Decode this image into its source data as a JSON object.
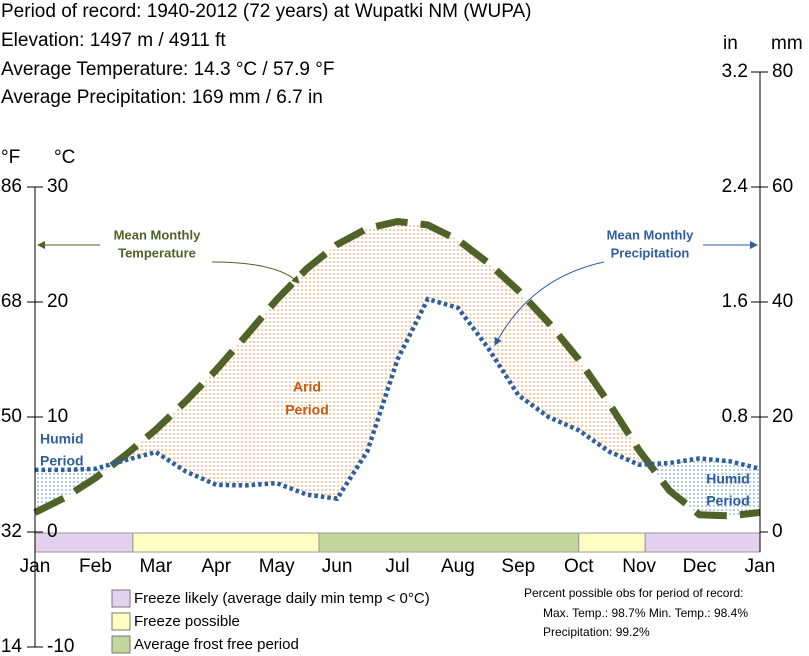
{
  "chart_data": {
    "type": "climate",
    "header": [
      "Period of record: 1940-2012  (72 years) at Wupatki NM (WUPA)",
      "Elevation: 1497 m / 4911 ft",
      "Average Temperature: 14.3 °C / 57.9 °F",
      "Average Precipitation: 169 mm / 6.7 in"
    ],
    "x": [
      0,
      0.5,
      1,
      1.5,
      2,
      2.5,
      3,
      3.5,
      4,
      4.5,
      5,
      5.5,
      6,
      6.5,
      7,
      7.5,
      8,
      8.5,
      9,
      9.5,
      10,
      10.5,
      11,
      11.5,
      12
    ],
    "xlim": [
      0,
      12
    ],
    "xticks": [
      {
        "value": 0,
        "label": "Jan"
      },
      {
        "value": 1,
        "label": "Feb"
      },
      {
        "value": 2,
        "label": "Mar"
      },
      {
        "value": 3,
        "label": "Apr"
      },
      {
        "value": 4,
        "label": "May"
      },
      {
        "value": 5,
        "label": "Jun"
      },
      {
        "value": 6,
        "label": "Jul"
      },
      {
        "value": 7,
        "label": "Aug"
      },
      {
        "value": 8,
        "label": "Sep"
      },
      {
        "value": 9,
        "label": "Oct"
      },
      {
        "value": 10,
        "label": "Nov"
      },
      {
        "value": 11,
        "label": "Dec"
      },
      {
        "value": 12,
        "label": "Jan"
      }
    ],
    "series": [
      {
        "name": "Mean Monthly Temperature",
        "color": "#4f6228",
        "values": [
          1.7,
          3.0,
          4.7,
          6.7,
          8.9,
          11.4,
          14.1,
          17.1,
          20.2,
          22.9,
          25,
          26.4,
          27,
          26.7,
          25.4,
          23.4,
          21,
          18.2,
          15,
          11.2,
          7.1,
          3.6,
          1.5,
          1.4,
          1.7
        ]
      },
      {
        "name": "Mean Monthly Precipitation",
        "color": "#2e5e9e",
        "axis": "y2",
        "values": [
          10.8,
          10.8,
          11,
          12.5,
          13.9,
          10.5,
          8.2,
          8.1,
          8.5,
          6.5,
          5.8,
          14,
          30,
          40.5,
          39,
          32,
          23.8,
          20,
          17.7,
          14,
          11.7,
          12,
          12.8,
          12.3,
          11
        ]
      }
    ],
    "y_label": "°C",
    "ylim": [
      -10,
      40
    ],
    "yticks": [
      -10,
      0,
      10,
      20,
      30
    ],
    "y_f_label": "°F",
    "y_f_lim": [
      14,
      104
    ],
    "y_f_ticks": [
      14,
      32,
      50,
      68,
      86
    ],
    "y2_label": "mm",
    "y2lim": [
      -20,
      80
    ],
    "y2ticks": [
      0,
      20,
      40,
      60,
      80
    ],
    "y2_in_label": "in",
    "y2_in_lim": [
      -0.8,
      3.2
    ],
    "y2_in_ticks": [
      0.8,
      1.6,
      2.4,
      3.2
    ],
    "arid_color": "#f4a46a",
    "humid_color": "#7fa7d6",
    "annotations": {
      "humid_left": [
        "Humid",
        "Period"
      ],
      "arid": [
        "Arid",
        "Period"
      ],
      "humid_right": [
        "Humid",
        "Period"
      ],
      "temperature": [
        "Mean Monthly",
        "Temperature"
      ],
      "precipitation": [
        "Mean Monthly",
        "Precipitation"
      ]
    },
    "legend": [
      {
        "label": "Freeze likely (average daily min temp < 0°C)",
        "color": "#e4d0ef"
      },
      {
        "label": "Freeze possible",
        "color": "#ffffc4"
      },
      {
        "label": "Average frost free period",
        "color": "#c3d69b"
      }
    ],
    "periods": [
      {
        "start": 0,
        "end": 1.62,
        "color": "#e4d0ef"
      },
      {
        "start": 1.62,
        "end": 4.7,
        "color": "#ffffc4"
      },
      {
        "start": 4.7,
        "end": 9,
        "color": "#c3d69b"
      },
      {
        "start": 9,
        "end": 10.1,
        "color": "#ffffc4"
      },
      {
        "start": 10.1,
        "end": 12,
        "color": "#e4d0ef"
      }
    ],
    "notes": [
      "Percent possible obs for period of record:",
      "Max. Temp.: 98.7% Min. Temp.: 98.4%",
      "Precipitation: 99.2%"
    ]
  }
}
